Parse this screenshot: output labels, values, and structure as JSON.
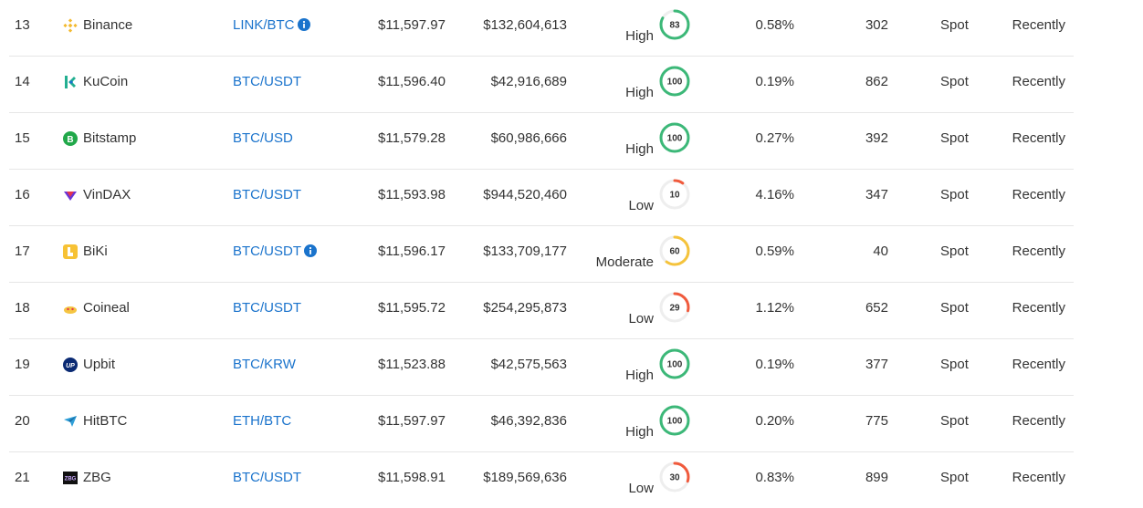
{
  "colors": {
    "high": "#3cb878",
    "moderate": "#f5c33b",
    "low": "#f05a3c",
    "track": "#eeeeee",
    "link": "#1a73cc"
  },
  "rows": [
    {
      "rank": "13",
      "exchange": "Binance",
      "icon": "binance-icon",
      "pair": "LINK/BTC",
      "pair_info": true,
      "price": "$11,597.97",
      "volume": "$132,604,613",
      "liquidity_label": "High",
      "liquidity_score": "83",
      "liquidity_level": "high",
      "depth_pct": "0.58%",
      "confidence": "302",
      "market_type": "Spot",
      "updated": "Recently"
    },
    {
      "rank": "14",
      "exchange": "KuCoin",
      "icon": "kucoin-icon",
      "pair": "BTC/USDT",
      "pair_info": false,
      "price": "$11,596.40",
      "volume": "$42,916,689",
      "liquidity_label": "High",
      "liquidity_score": "100",
      "liquidity_level": "high",
      "depth_pct": "0.19%",
      "confidence": "862",
      "market_type": "Spot",
      "updated": "Recently"
    },
    {
      "rank": "15",
      "exchange": "Bitstamp",
      "icon": "bitstamp-icon",
      "pair": "BTC/USD",
      "pair_info": false,
      "price": "$11,579.28",
      "volume": "$60,986,666",
      "liquidity_label": "High",
      "liquidity_score": "100",
      "liquidity_level": "high",
      "depth_pct": "0.27%",
      "confidence": "392",
      "market_type": "Spot",
      "updated": "Recently"
    },
    {
      "rank": "16",
      "exchange": "VinDAX",
      "icon": "vindax-icon",
      "pair": "BTC/USDT",
      "pair_info": false,
      "price": "$11,593.98",
      "volume": "$944,520,460",
      "liquidity_label": "Low",
      "liquidity_score": "10",
      "liquidity_level": "low",
      "depth_pct": "4.16%",
      "confidence": "347",
      "market_type": "Spot",
      "updated": "Recently"
    },
    {
      "rank": "17",
      "exchange": "BiKi",
      "icon": "biki-icon",
      "pair": "BTC/USDT",
      "pair_info": true,
      "price": "$11,596.17",
      "volume": "$133,709,177",
      "liquidity_label": "Moderate",
      "liquidity_score": "60",
      "liquidity_level": "moderate",
      "depth_pct": "0.59%",
      "confidence": "40",
      "market_type": "Spot",
      "updated": "Recently"
    },
    {
      "rank": "18",
      "exchange": "Coineal",
      "icon": "coineal-icon",
      "pair": "BTC/USDT",
      "pair_info": false,
      "price": "$11,595.72",
      "volume": "$254,295,873",
      "liquidity_label": "Low",
      "liquidity_score": "29",
      "liquidity_level": "low",
      "depth_pct": "1.12%",
      "confidence": "652",
      "market_type": "Spot",
      "updated": "Recently"
    },
    {
      "rank": "19",
      "exchange": "Upbit",
      "icon": "upbit-icon",
      "pair": "BTC/KRW",
      "pair_info": false,
      "price": "$11,523.88",
      "volume": "$42,575,563",
      "liquidity_label": "High",
      "liquidity_score": "100",
      "liquidity_level": "high",
      "depth_pct": "0.19%",
      "confidence": "377",
      "market_type": "Spot",
      "updated": "Recently"
    },
    {
      "rank": "20",
      "exchange": "HitBTC",
      "icon": "hitbtc-icon",
      "pair": "ETH/BTC",
      "pair_info": false,
      "price": "$11,597.97",
      "volume": "$46,392,836",
      "liquidity_label": "High",
      "liquidity_score": "100",
      "liquidity_level": "high",
      "depth_pct": "0.20%",
      "confidence": "775",
      "market_type": "Spot",
      "updated": "Recently"
    },
    {
      "rank": "21",
      "exchange": "ZBG",
      "icon": "zbg-icon",
      "pair": "BTC/USDT",
      "pair_info": false,
      "price": "$11,598.91",
      "volume": "$189,569,636",
      "liquidity_label": "Low",
      "liquidity_score": "30",
      "liquidity_level": "low",
      "depth_pct": "0.83%",
      "confidence": "899",
      "market_type": "Spot",
      "updated": "Recently"
    }
  ]
}
